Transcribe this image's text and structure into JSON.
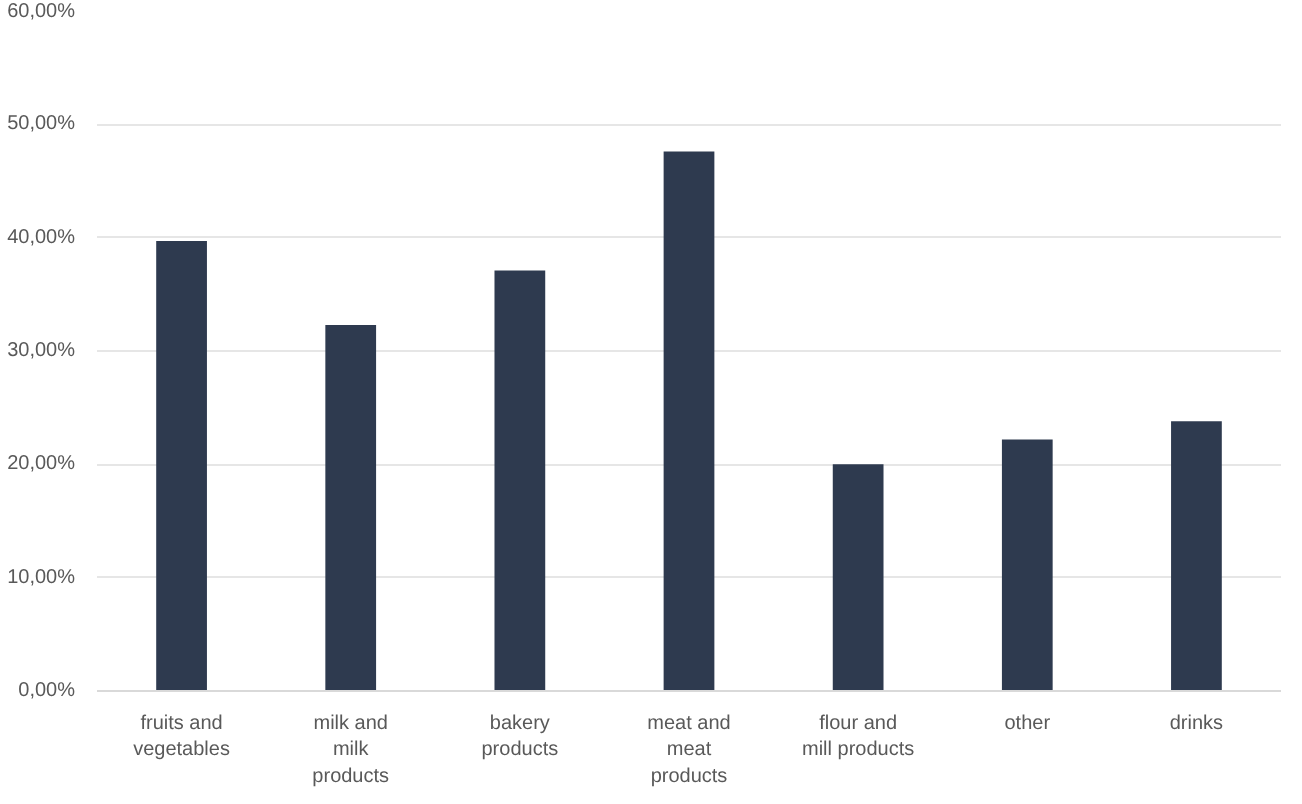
{
  "chart_data": {
    "type": "bar",
    "categories": [
      "fruits and\nvegetables",
      "milk and\nmilk\nproducts",
      "bakery\nproducts",
      "meat and\nmeat\nproducts",
      "flour and\nmill products",
      "other",
      "drinks"
    ],
    "values": [
      39.7,
      32.3,
      37.1,
      47.6,
      20.0,
      22.2,
      23.8
    ],
    "color": "#2e3a4f",
    "ylim": [
      0,
      60
    ],
    "yticks": [
      {
        "value": 0,
        "label": "0,00%"
      },
      {
        "value": 10,
        "label": "10,00%"
      },
      {
        "value": 20,
        "label": "20,00%"
      },
      {
        "value": 30,
        "label": "30,00%"
      },
      {
        "value": 40,
        "label": "40,00%"
      },
      {
        "value": 50,
        "label": "50,00%"
      },
      {
        "value": 60,
        "label": "60,00%"
      }
    ],
    "grid": "y"
  }
}
